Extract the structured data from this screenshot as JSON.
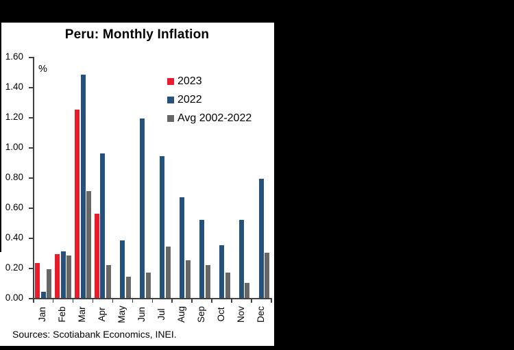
{
  "colors": {
    "background": "#000000",
    "panel": "#ffffff",
    "axis": "#404040",
    "series_2023": "#EA1C2C",
    "series_2022": "#25517D",
    "series_avg": "#676767"
  },
  "chart_data": {
    "type": "bar",
    "title": "Peru: Monthly Inflation",
    "unit_label": "%",
    "source_note": "Sources: Scotiabank Economics, INEI.",
    "categories": [
      "Jan",
      "Feb",
      "Mar",
      "Apr",
      "May",
      "Jun",
      "Jul",
      "Aug",
      "Sep",
      "Oct",
      "Nov",
      "Dec"
    ],
    "series": [
      {
        "name": "2023",
        "color": "#EA1C2C",
        "values": [
          0.23,
          0.29,
          1.25,
          0.56,
          null,
          null,
          null,
          null,
          null,
          null,
          null,
          null
        ]
      },
      {
        "name": "2022",
        "color": "#25517D",
        "values": [
          0.04,
          0.31,
          1.48,
          0.96,
          0.38,
          1.19,
          0.94,
          0.67,
          0.52,
          0.35,
          0.52,
          0.79
        ]
      },
      {
        "name": "Avg 2002-2022",
        "color": "#676767",
        "values": [
          0.19,
          0.28,
          0.71,
          0.22,
          0.14,
          0.17,
          0.34,
          0.25,
          0.22,
          0.17,
          0.1,
          0.3
        ]
      }
    ],
    "ylim": [
      0,
      1.6
    ],
    "ytick_labels": [
      "0.00",
      "0.20",
      "0.40",
      "0.60",
      "0.80",
      "1.00",
      "1.20",
      "1.40",
      "1.60"
    ],
    "xlabel": "",
    "ylabel": "%",
    "grid": false,
    "legend_position": "top-right-inside",
    "x_tick_labels_rotated_degrees": 90
  }
}
